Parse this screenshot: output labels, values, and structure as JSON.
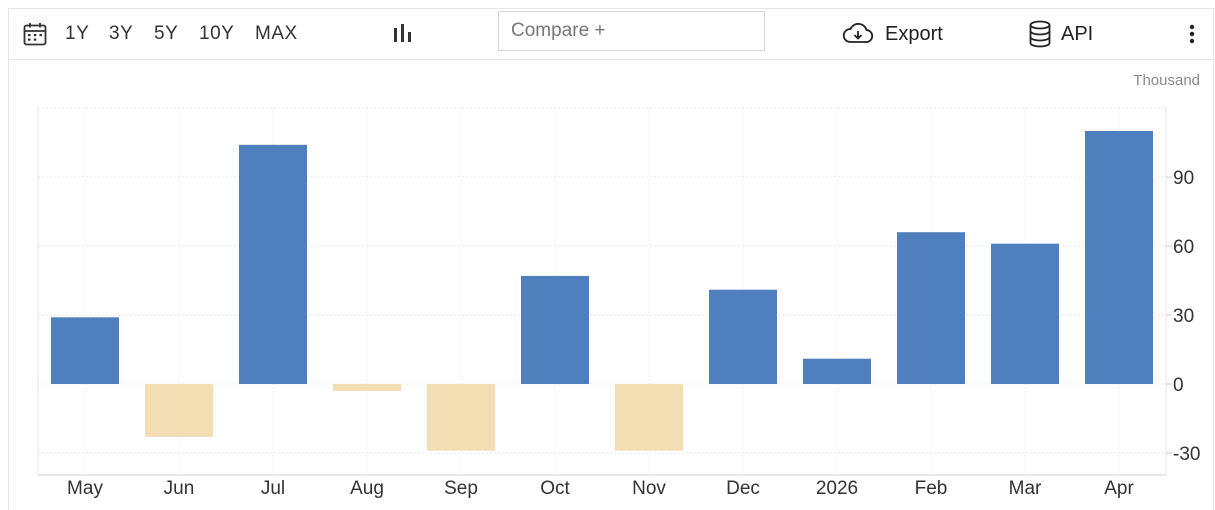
{
  "toolbar": {
    "calendar_icon": "calendar-icon",
    "ranges": [
      "1Y",
      "3Y",
      "5Y",
      "10Y",
      "MAX"
    ],
    "chart_type_icon": "bar-chart-icon",
    "compare_placeholder": "Compare +",
    "export_label": "Export",
    "export_icon": "cloud-download-icon",
    "api_label": "API",
    "api_icon": "database-icon",
    "more_icon": "kebab-menu-icon"
  },
  "colors": {
    "positive": "#4f7fbd",
    "negative": "#f3ddb3"
  },
  "chart_data": {
    "type": "bar",
    "unit": "Thousand",
    "categories": [
      "May",
      "Jun",
      "Jul",
      "Aug",
      "Sep",
      "Oct",
      "Nov",
      "Dec",
      "2026",
      "Feb",
      "Mar",
      "Apr"
    ],
    "values": [
      29,
      -23,
      104,
      -3,
      -29,
      47,
      -29,
      41,
      11,
      66,
      61,
      110
    ],
    "ylim": [
      -40,
      121
    ],
    "yticks": [
      -30,
      0,
      30,
      60,
      90
    ],
    "y_axis_position": "right",
    "grid": true
  }
}
